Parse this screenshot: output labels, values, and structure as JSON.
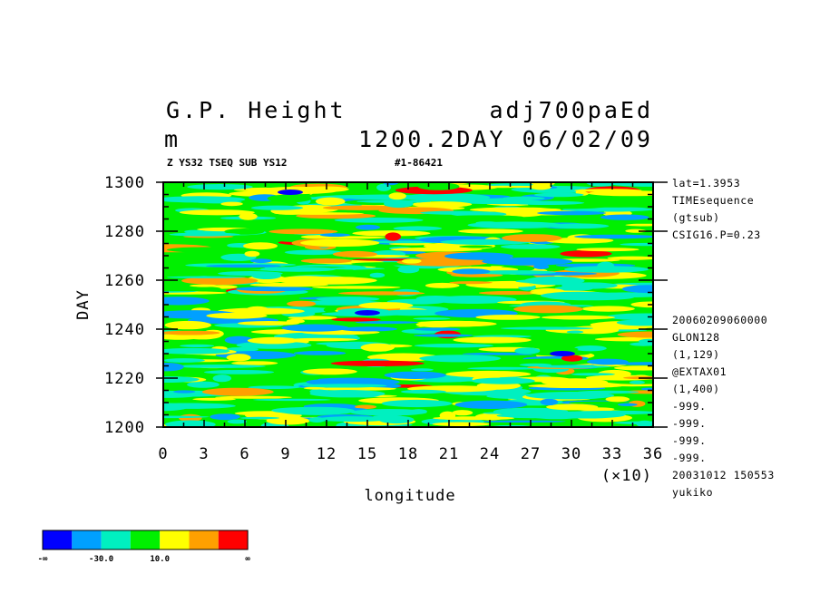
{
  "header": {
    "title_left": "G.P. Height",
    "title_right": "adj700paEd",
    "unit": "m",
    "time_info": "1200.2DAY 06/02/09",
    "sub_left": "Z YS32 TSEQ SUB YS12",
    "sub_right": "#1-86421"
  },
  "chart_data": {
    "type": "heatmap",
    "title": "G.P. Height",
    "xlabel": "longitude",
    "ylabel": "DAY",
    "x_multiplier": "(×10)",
    "xlim": [
      0,
      36
    ],
    "ylim": [
      1200,
      1300
    ],
    "x_ticks": [
      "0",
      "3",
      "6",
      "9",
      "12",
      "15",
      "18",
      "21",
      "24",
      "27",
      "30",
      "33",
      "36"
    ],
    "y_ticks": [
      "1200",
      "1220",
      "1240",
      "1260",
      "1280",
      "1300"
    ],
    "color_levels": [
      {
        "color": "#0000ff"
      },
      {
        "color": "#00a0ff"
      },
      {
        "color": "#00f0c0"
      },
      {
        "color": "#00f000"
      },
      {
        "color": "#ffff00"
      },
      {
        "color": "#ffa000"
      },
      {
        "color": "#ff0000"
      }
    ],
    "colorbar_labels": [
      "-∞",
      "-30.0",
      "10.0",
      "∞"
    ]
  },
  "side_info_top": [
    "lat=1.3953",
    "TIMEsequence",
    "(gtsub)",
    "CSIG16.P=0.23"
  ],
  "side_info_bottom": [
    "20060209060000",
    "GLON128",
    "(1,129)",
    "@EXTAX01",
    "(1,400)",
    "-999.",
    "-999.",
    "-999.",
    "-999.",
    "20031012 150553",
    "yukiko"
  ]
}
